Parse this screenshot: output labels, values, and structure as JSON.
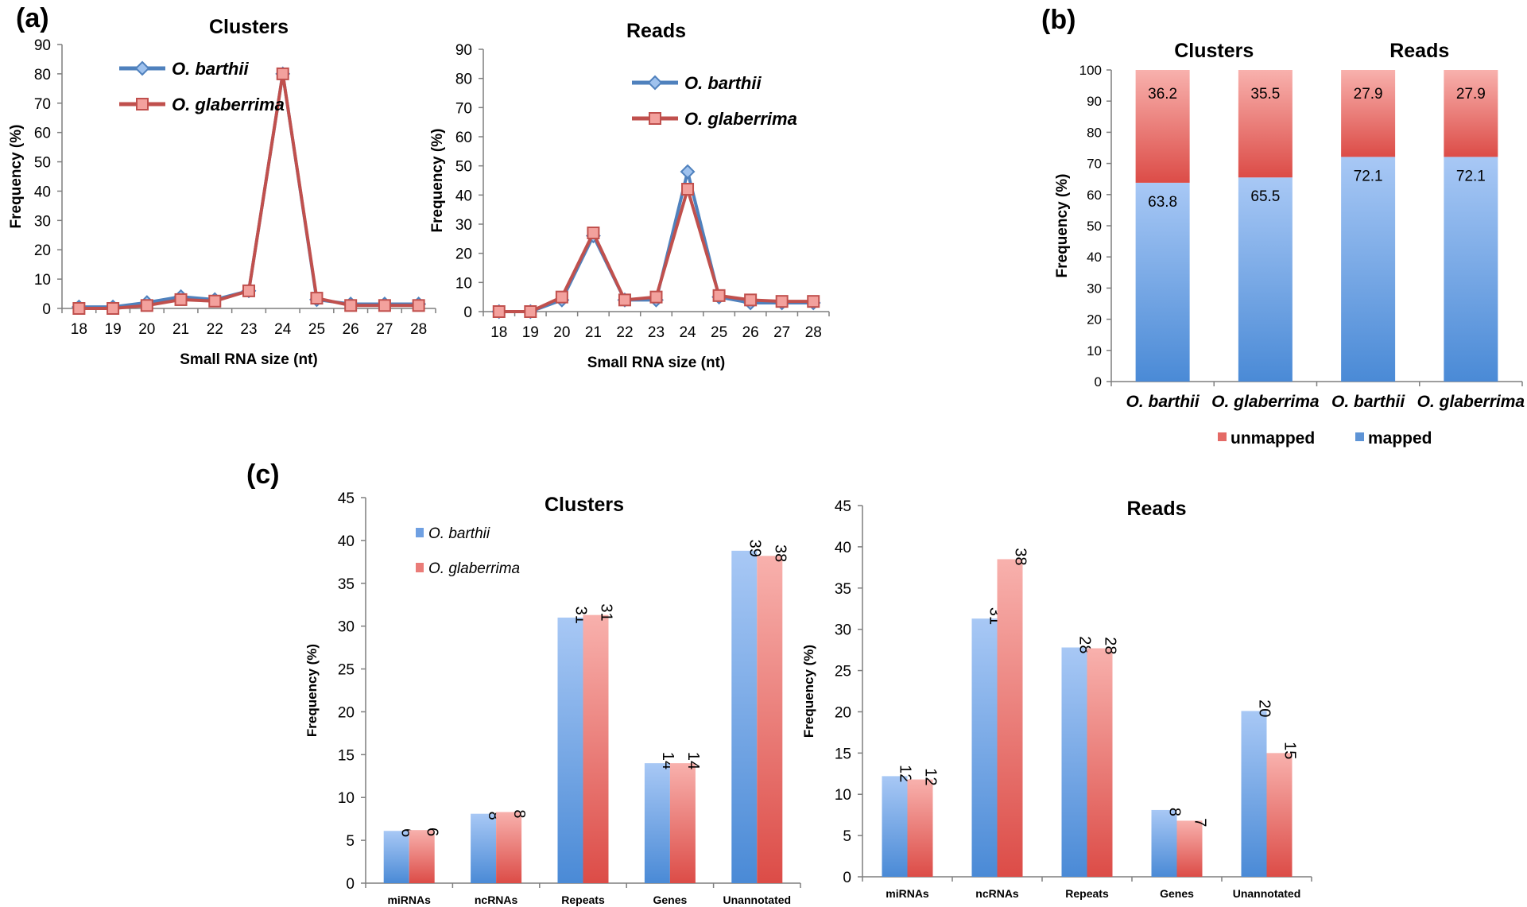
{
  "panel_labels": {
    "a": "(a)",
    "b": "(b)",
    "c": "(c)"
  },
  "colors": {
    "blue": "#4f81bd",
    "red": "#c0504d",
    "blue_light": "#a8c8f5",
    "red_light": "#f6a6a3"
  },
  "chart_data": [
    {
      "id": "a_clusters",
      "type": "line",
      "title": "Clusters",
      "xlabel": "Small RNA size (nt)",
      "ylabel": "Frequency (%)",
      "x": [
        "18",
        "19",
        "20",
        "21",
        "22",
        "23",
        "24",
        "25",
        "26",
        "27",
        "28"
      ],
      "ylim": [
        0,
        90
      ],
      "yticks": [
        0,
        10,
        20,
        30,
        40,
        50,
        60,
        70,
        80,
        90
      ],
      "legend_position": "top-left",
      "series": [
        {
          "name": "O. barthii",
          "color": "#4f81bd",
          "marker": "diamond",
          "values": [
            0.5,
            0.5,
            2,
            4,
            3,
            6,
            80,
            3,
            1.5,
            1.5,
            1.5
          ]
        },
        {
          "name": "O. glaberrima",
          "color": "#c0504d",
          "marker": "square",
          "values": [
            0,
            0,
            1,
            3,
            2.5,
            6,
            80,
            3.5,
            1,
            1,
            1
          ]
        }
      ]
    },
    {
      "id": "a_reads",
      "type": "line",
      "title": "Reads",
      "xlabel": "Small RNA size (nt)",
      "ylabel": "Frequency (%)",
      "x": [
        "18",
        "19",
        "20",
        "21",
        "22",
        "23",
        "24",
        "25",
        "26",
        "27",
        "28"
      ],
      "ylim": [
        0,
        90
      ],
      "yticks": [
        0,
        10,
        20,
        30,
        40,
        50,
        60,
        70,
        80,
        90
      ],
      "legend_position": "top-left",
      "series": [
        {
          "name": "O. barthii",
          "color": "#4f81bd",
          "marker": "diamond",
          "values": [
            0,
            0,
            4,
            26,
            4,
            4,
            48,
            5,
            3,
            3,
            3
          ]
        },
        {
          "name": "O. glaberrima",
          "color": "#c0504d",
          "marker": "square",
          "values": [
            0,
            0,
            5,
            27,
            4,
            5,
            42,
            5.5,
            4,
            3.5,
            3.5
          ]
        }
      ]
    },
    {
      "id": "b",
      "type": "bar",
      "stacked": true,
      "groups": [
        "Clusters",
        "Reads"
      ],
      "categories": [
        "O. barthii",
        "O. glaberrima",
        "O. barthii",
        "O. glaberrima"
      ],
      "ylabel": "Frequency (%)",
      "ylim": [
        0,
        100
      ],
      "yticks": [
        0,
        10,
        20,
        30,
        40,
        50,
        60,
        70,
        80,
        90,
        100
      ],
      "legend_position": "bottom",
      "series": [
        {
          "name": "mapped",
          "color": "#4f81bd",
          "values": [
            63.8,
            65.5,
            72.1,
            72.1
          ],
          "labels": [
            "63.8",
            "65.5",
            "72.1",
            "72.1"
          ]
        },
        {
          "name": "unmapped",
          "color": "#c0504d",
          "values": [
            36.2,
            35.5,
            27.9,
            27.9
          ],
          "labels": [
            "36.2",
            "35.5",
            "27.9",
            "27.9"
          ]
        }
      ]
    },
    {
      "id": "c_clusters",
      "type": "bar",
      "title": "Clusters",
      "ylabel": "Frequency (%)",
      "categories": [
        "miRNAs",
        "ncRNAs",
        "Repeats",
        "Genes",
        "Unannotated"
      ],
      "ylim": [
        0,
        45
      ],
      "yticks": [
        0,
        5,
        10,
        15,
        20,
        25,
        30,
        35,
        40,
        45
      ],
      "legend_position": "top-left",
      "series": [
        {
          "name": "O. barthii",
          "color": "#4f81bd",
          "values": [
            6.1,
            8.1,
            31,
            14,
            38.8
          ],
          "labels": [
            "6",
            "8",
            "31",
            "14",
            "39"
          ]
        },
        {
          "name": "O. glaberrima",
          "color": "#c0504d",
          "values": [
            6.2,
            8.3,
            31.3,
            14,
            38.2
          ],
          "labels": [
            "6",
            "8",
            "31",
            "14",
            "38"
          ]
        }
      ]
    },
    {
      "id": "c_reads",
      "type": "bar",
      "title": "Reads",
      "ylabel": "Frequency (%)",
      "categories": [
        "miRNAs",
        "ncRNAs",
        "Repeats",
        "Genes",
        "Unannotated"
      ],
      "ylim": [
        0,
        45
      ],
      "yticks": [
        0,
        5,
        10,
        15,
        20,
        25,
        30,
        35,
        40,
        45
      ],
      "series": [
        {
          "name": "O. barthii",
          "color": "#4f81bd",
          "values": [
            12.2,
            31.3,
            27.8,
            8.1,
            20.1
          ],
          "labels": [
            "12",
            "31",
            "28",
            "8",
            "20"
          ]
        },
        {
          "name": "O. glaberrima",
          "color": "#c0504d",
          "values": [
            11.8,
            38.5,
            27.7,
            6.8,
            15
          ],
          "labels": [
            "12",
            "38",
            "28",
            "7",
            "15"
          ]
        }
      ]
    }
  ]
}
